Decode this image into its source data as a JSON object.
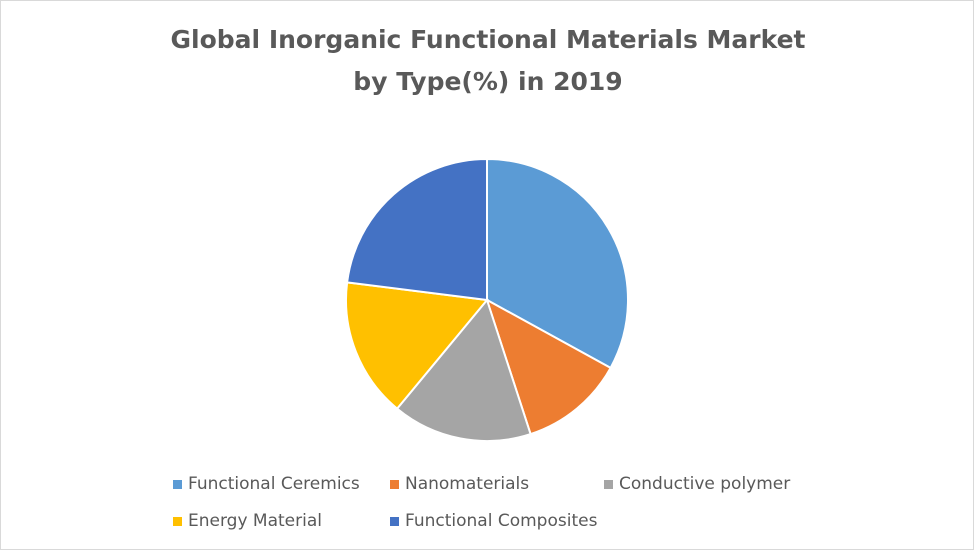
{
  "chart_data": {
    "type": "pie",
    "title": "Global Inorganic Functional Materials Market by Type(%) in 2019",
    "title_lines": [
      "Global Inorganic Functional Materials Market",
      "by Type(%) in 2019"
    ],
    "categories": [
      "Functional Ceremics",
      "Nanomaterials",
      "Conductive polymer",
      "Energy Material",
      "Functional Composites"
    ],
    "values": [
      33,
      12,
      16,
      16,
      23
    ],
    "colors": [
      "#5b9bd5",
      "#ed7d31",
      "#a5a5a5",
      "#ffc000",
      "#4472c4"
    ],
    "legend_position": "bottom",
    "start_angle": "top",
    "direction": "clockwise"
  }
}
